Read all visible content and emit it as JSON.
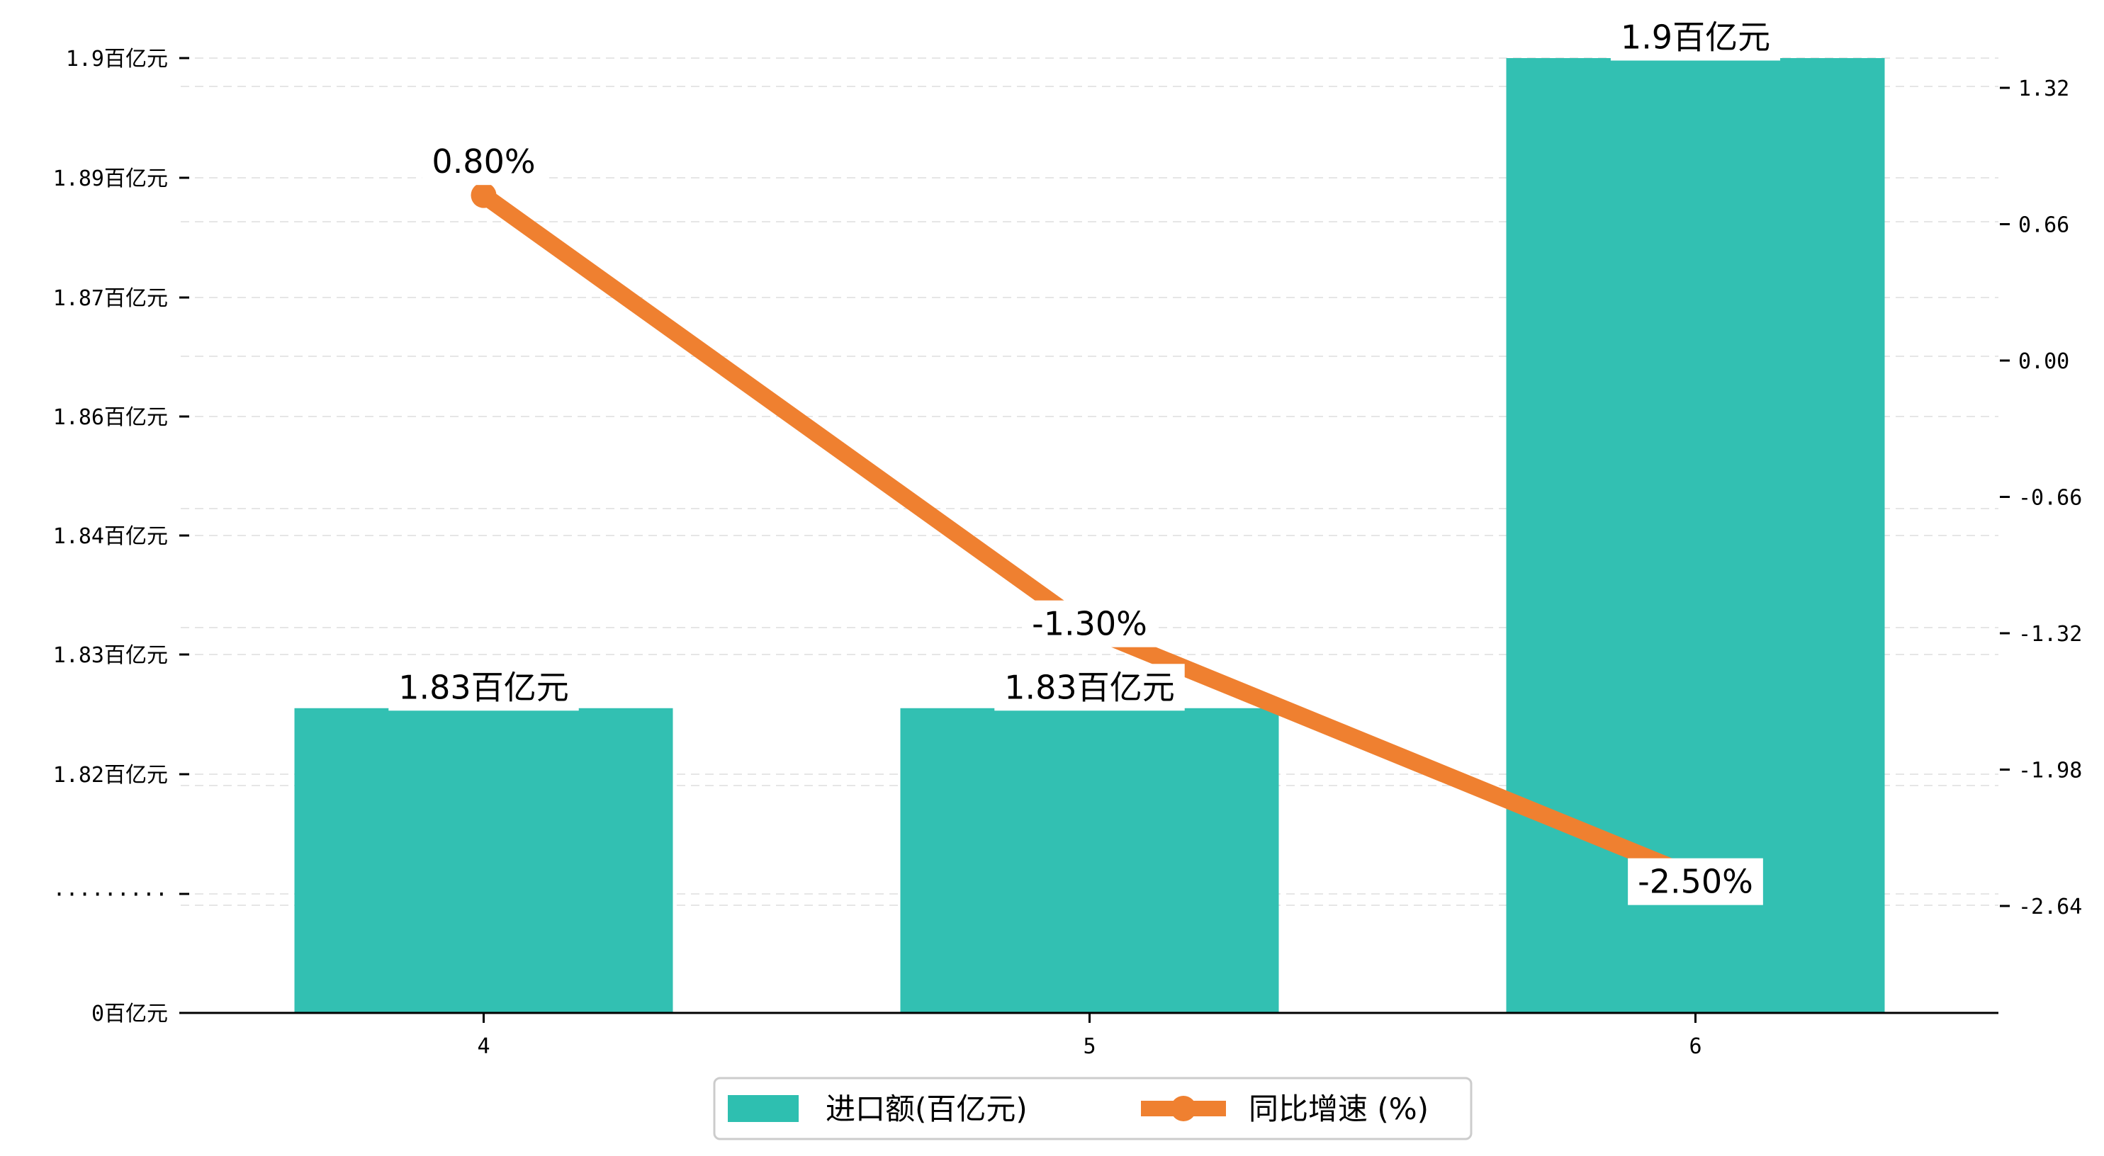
{
  "chart_data": {
    "type": "bar",
    "categories": [
      "4",
      "5",
      "6"
    ],
    "series": [
      {
        "name": "进口额(百亿元)",
        "kind": "bar",
        "axis": "left",
        "values": [
          1.83,
          1.83,
          1.9
        ],
        "labels": [
          "1.83百亿元",
          "1.83百亿元",
          "1.9百亿元"
        ],
        "color": "#2ebfb0"
      },
      {
        "name": "同比增速 (%)",
        "kind": "line",
        "axis": "right",
        "values": [
          0.8,
          -1.3,
          -2.5
        ],
        "labels": [
          "0.80%",
          "-1.30%",
          "-2.50%"
        ],
        "color": "#ef8030"
      }
    ],
    "left_axis": {
      "broken": true,
      "tick_labels": [
        "0百亿元",
        "·········",
        "1.82百亿元",
        "1.83百亿元",
        "1.84百亿元",
        "1.86百亿元",
        "1.87百亿元",
        "1.89百亿元",
        "1.9百亿元"
      ],
      "range": [
        1.81,
        1.9
      ]
    },
    "right_axis": {
      "ticks": [
        1.32,
        0.66,
        0.0,
        -0.66,
        -1.32,
        -1.98,
        -2.64
      ],
      "tick_labels": [
        "1.32",
        "0.66",
        "0.00",
        "-0.66",
        "-1.32",
        "-1.98",
        "-2.64"
      ],
      "range": [
        -3.2,
        1.65
      ]
    },
    "grid": "horizontal dashed",
    "legend_position": "bottom-center",
    "legend": [
      "进口额(百亿元)",
      "同比增速 (%)"
    ]
  }
}
